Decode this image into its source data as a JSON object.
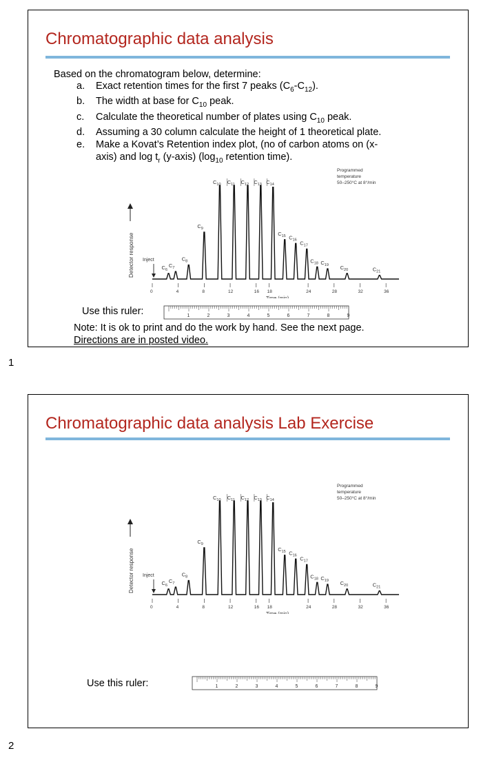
{
  "page_numbers": [
    "1",
    "2"
  ],
  "slide1": {
    "title": "Chromatographic data analysis",
    "intro": "Based on the chromatogram below, determine:",
    "questions": [
      {
        "letter": "a.",
        "pre": "Exact retention times for the first 7 peaks (C",
        "s1": "6",
        "mid": "-C",
        "s2": "12",
        "post": ")."
      },
      {
        "letter": "b.",
        "pre": "The width at base for C",
        "s1": "10",
        "post": " peak."
      },
      {
        "letter": "c.",
        "pre": "Calculate the theoretical number of plates using C",
        "s1": "10",
        "post": " peak."
      },
      {
        "letter": "d.",
        "text": "Assuming a 30 column calculate the height of 1 theoretical plate."
      },
      {
        "letter": "e.",
        "line1": "Make a  Kovat’s Retention index plot, (no of carbon atoms on  (x-",
        "l2pre": "axis) and log t",
        "l2s1": "r",
        "l2mid": " (y-axis) (log",
        "l2s2": "10",
        "l2post": " retention time)."
      }
    ],
    "ruler_label": "Use this ruler:",
    "note_line1": "Note: It is ok to print and do the work by hand. See the next page.",
    "note_line2": "Directions are in posted video."
  },
  "slide2": {
    "title": "Chromatographic data analysis Lab Exercise",
    "ruler_label": "Use this ruler:"
  },
  "chart_data": {
    "type": "line",
    "title": "",
    "xlabel": "Time (min)",
    "ylabel": "Detector response",
    "xlim": [
      0,
      38
    ],
    "x_ticks": [
      0,
      4,
      8,
      12,
      16,
      18,
      24,
      28,
      32,
      36
    ],
    "inject_label": "Inject",
    "annotation": [
      "Programmed",
      "temperature",
      "50–250°C at 8°/min"
    ],
    "peaks": [
      {
        "name": "C6",
        "base": "C",
        "sub": "6",
        "time": 2.5,
        "height": 0.06
      },
      {
        "name": "C7",
        "base": "C",
        "sub": "7",
        "time": 3.6,
        "height": 0.08
      },
      {
        "name": "C8",
        "base": "C",
        "sub": "8",
        "time": 5.6,
        "height": 0.15
      },
      {
        "name": "C9",
        "base": "C",
        "sub": "9",
        "time": 8.0,
        "height": 0.5
      },
      {
        "name": "C10",
        "base": "C",
        "sub": "10",
        "time": 10.4,
        "height": 1.0
      },
      {
        "name": "C11",
        "base": "C",
        "sub": "11",
        "time": 12.6,
        "height": 1.0
      },
      {
        "name": "C12",
        "base": "C",
        "sub": "12",
        "time": 14.7,
        "height": 1.0
      },
      {
        "name": "C13",
        "base": "C",
        "sub": "13",
        "time": 16.7,
        "height": 1.0
      },
      {
        "name": "C14",
        "base": "C",
        "sub": "14",
        "time": 18.6,
        "height": 0.98
      },
      {
        "name": "C15",
        "base": "C",
        "sub": "15",
        "time": 20.4,
        "height": 0.42
      },
      {
        "name": "C16",
        "base": "C",
        "sub": "16",
        "time": 22.1,
        "height": 0.38
      },
      {
        "name": "C17",
        "base": "C",
        "sub": "17",
        "time": 23.8,
        "height": 0.32
      },
      {
        "name": "C18",
        "base": "C",
        "sub": "18",
        "time": 25.4,
        "height": 0.13
      },
      {
        "name": "C19",
        "base": "C",
        "sub": "19",
        "time": 27.0,
        "height": 0.11
      },
      {
        "name": "C20",
        "base": "C",
        "sub": "20",
        "time": 30.0,
        "height": 0.06
      },
      {
        "name": "C21",
        "base": "C",
        "sub": "21",
        "time": 35.0,
        "height": 0.04
      }
    ]
  },
  "ruler": {
    "numbers": [
      "1",
      "2",
      "3",
      "4",
      "5",
      "6",
      "7",
      "8",
      "9"
    ]
  }
}
